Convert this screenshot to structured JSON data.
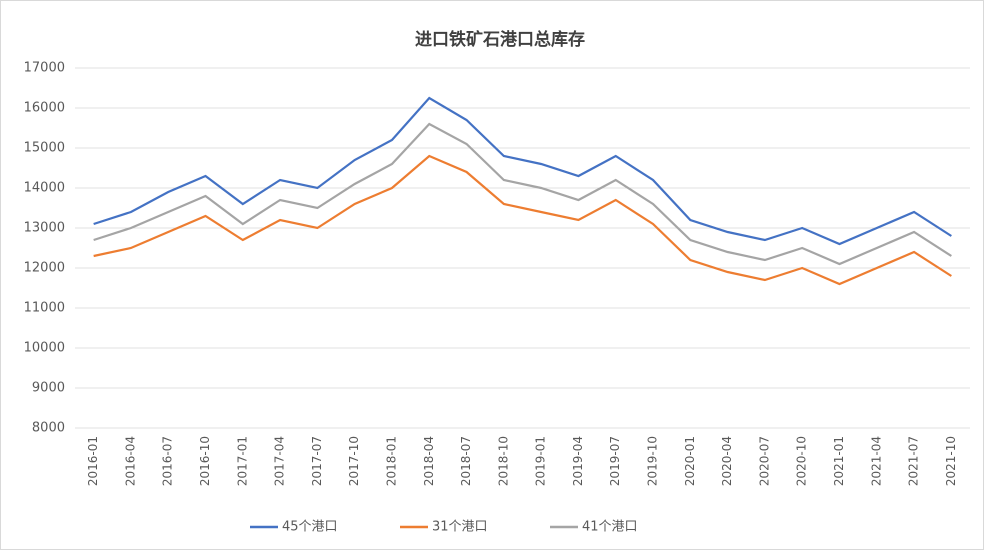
{
  "chart_data": {
    "type": "line",
    "title": "进口铁矿石港口总库存",
    "x": [
      "2016-01",
      "2016-04",
      "2016-07",
      "2016-10",
      "2017-01",
      "2017-04",
      "2017-07",
      "2017-10",
      "2018-01",
      "2018-04",
      "2018-07",
      "2018-10",
      "2019-01",
      "2019-04",
      "2019-07",
      "2019-10",
      "2020-01",
      "2020-04",
      "2020-07",
      "2020-10",
      "2021-01",
      "2021-04",
      "2021-07",
      "2021-10"
    ],
    "series": [
      {
        "name": "45个港口",
        "color": "#4472c4",
        "values": [
          13100,
          13400,
          13900,
          14300,
          13600,
          14200,
          14000,
          14700,
          15200,
          16250,
          15700,
          14800,
          14600,
          14300,
          14800,
          14200,
          13200,
          12900,
          12700,
          13000,
          12600,
          13000,
          13400,
          12800
        ]
      },
      {
        "name": "31个港口",
        "color": "#ed7d31",
        "values": [
          12300,
          12500,
          12900,
          13300,
          12700,
          13200,
          13000,
          13600,
          14000,
          14800,
          14400,
          13600,
          13400,
          13200,
          13700,
          13100,
          12200,
          11900,
          11700,
          12000,
          11600,
          12000,
          12400,
          11800
        ]
      },
      {
        "name": "41个港口",
        "color": "#a5a5a5",
        "values": [
          12700,
          13000,
          13400,
          13800,
          13100,
          13700,
          13500,
          14100,
          14600,
          15600,
          15100,
          14200,
          14000,
          13700,
          14200,
          13600,
          12700,
          12400,
          12200,
          12500,
          12100,
          12500,
          12900,
          12300
        ]
      }
    ],
    "ylim": [
      8000,
      17000
    ],
    "yticks": [
      8000,
      9000,
      10000,
      11000,
      12000,
      13000,
      14000,
      15000,
      16000,
      17000
    ],
    "grid": true
  }
}
